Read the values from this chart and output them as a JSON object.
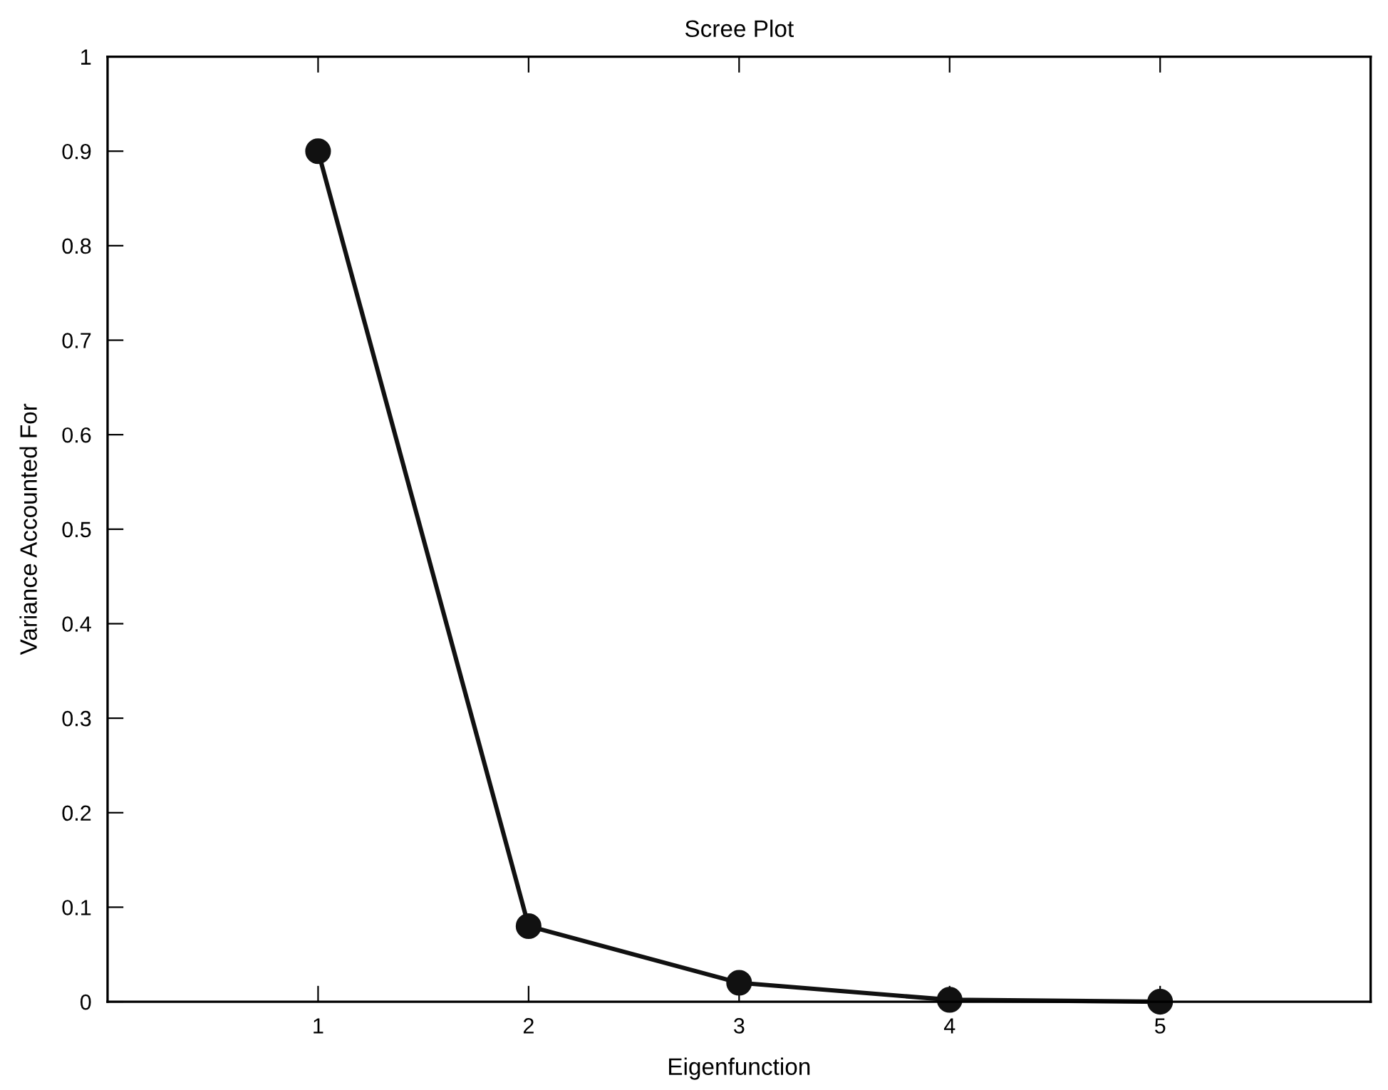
{
  "chart_data": {
    "type": "line",
    "title": "Scree Plot",
    "xlabel": "Eigenfunction",
    "ylabel": "Variance Accounted For",
    "x": [
      1,
      2,
      3,
      4,
      5
    ],
    "series": [
      {
        "color": "#111111",
        "values": [
          0.9,
          0.08,
          0.02,
          0.002,
          0
        ]
      }
    ],
    "xlim": [
      0,
      6
    ],
    "xticks": [
      1,
      2,
      3,
      4,
      5
    ],
    "ylim": [
      0,
      1
    ],
    "yticks": [
      0,
      0.1,
      0.2,
      0.3,
      0.4,
      0.5,
      0.6,
      0.7,
      0.8,
      0.9,
      1
    ],
    "marker": "circle",
    "line_style": "solid",
    "grid": false
  }
}
